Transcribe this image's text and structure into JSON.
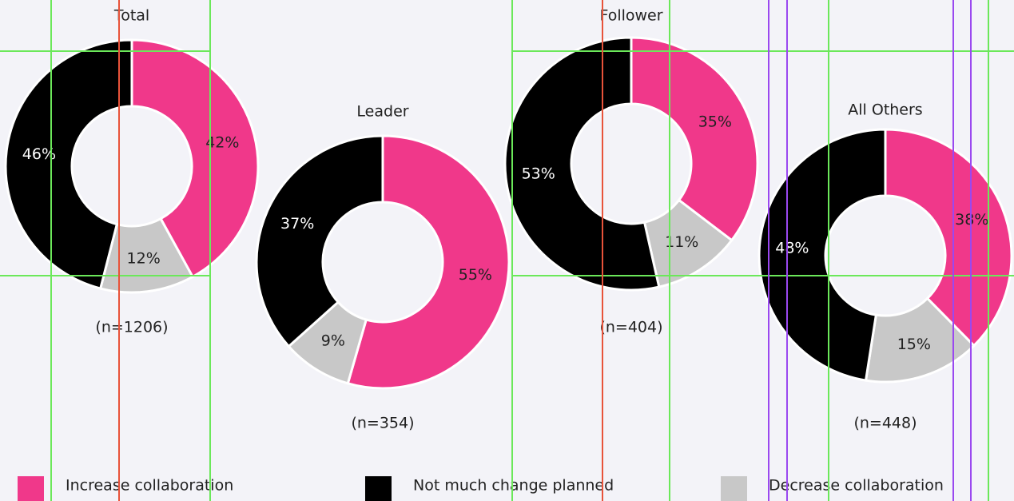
{
  "legend": {
    "labels": [
      "Increase collaboration",
      "Decrease collaboration",
      "Not much change planned"
    ],
    "colors": [
      "#f0388a",
      "#c8c8c8",
      "#000000"
    ]
  },
  "chart_data": [
    {
      "type": "pie",
      "title": "Total",
      "note": "(n=1206)",
      "values": [
        42,
        12,
        46
      ],
      "value_labels": [
        "42%",
        "12%",
        "46%"
      ]
    },
    {
      "type": "pie",
      "title": "Leader",
      "note": "(n=354)",
      "values": [
        55,
        9,
        37
      ],
      "value_labels": [
        "55%",
        "9%",
        "37%"
      ]
    },
    {
      "type": "pie",
      "title": "Follower",
      "note": "(n=404)",
      "values": [
        35,
        11,
        53
      ],
      "value_labels": [
        "35%",
        "11%",
        "53%"
      ]
    },
    {
      "type": "pie",
      "title": "All Others",
      "note": "(n=448)",
      "values": [
        38,
        15,
        48
      ],
      "value_labels": [
        "38%",
        "15%",
        "48%"
      ]
    }
  ]
}
